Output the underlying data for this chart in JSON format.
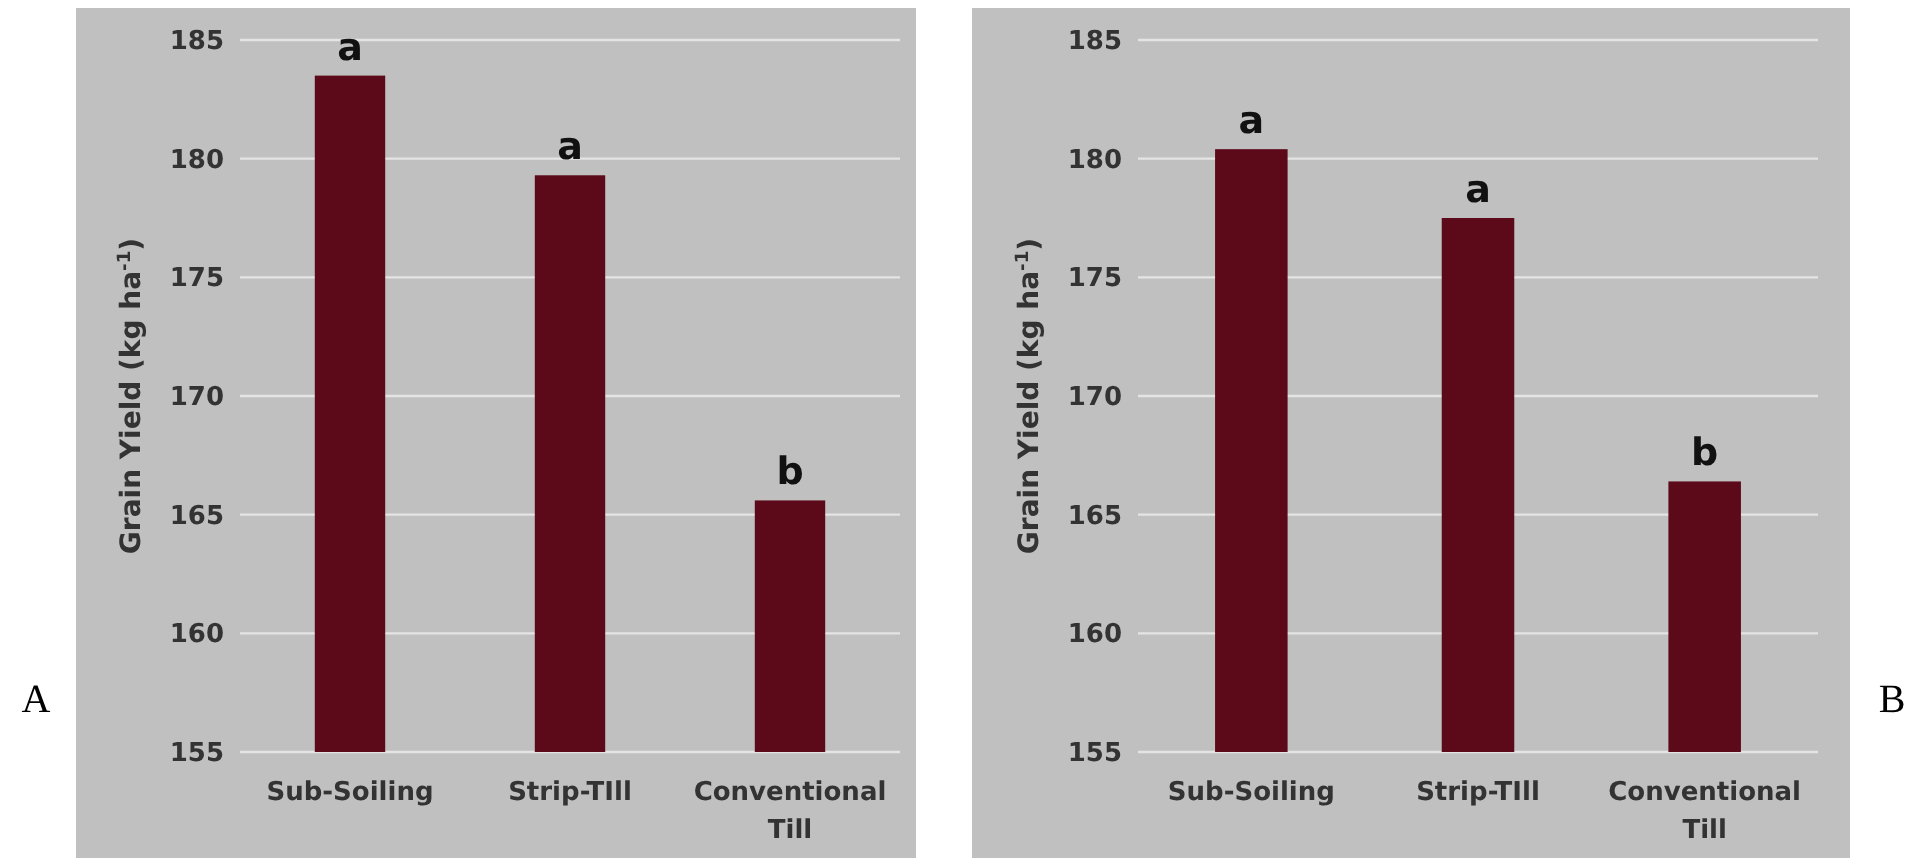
{
  "chart_data": [
    {
      "type": "bar",
      "ylabel": "Grain Yield (kg ha$^{-1}$)",
      "categories": [
        "Sub-Soiling",
        "Strip-TIll",
        "Conventional Till"
      ],
      "values": [
        183.5,
        179.3,
        165.6
      ],
      "color": "#5c0a19",
      "ylim": [
        155,
        185
      ],
      "yticks": [
        155,
        160,
        165,
        170,
        175,
        180,
        185
      ],
      "grid": "y",
      "annotations": [
        "A",
        {
          "text": "a",
          "x": "Sub-Soiling",
          "y": 183.5
        },
        {
          "text": "a",
          "x": "Strip-TIll",
          "y": 179.3
        },
        {
          "text": "b",
          "x": "Conventional Till",
          "y": 165.6
        }
      ]
    },
    {
      "type": "bar",
      "ylabel": "Grain Yield (kg ha$^{-1}$)",
      "categories": [
        "Sub-Soiling",
        "Strip-TIll",
        "Conventional Till"
      ],
      "values": [
        180.4,
        177.5,
        166.4
      ],
      "color": "#5c0a19",
      "ylim": [
        155,
        185
      ],
      "yticks": [
        155,
        160,
        165,
        170,
        175,
        180,
        185
      ],
      "grid": "y",
      "annotations": [
        "B",
        {
          "text": "a",
          "x": "Sub-Soiling",
          "y": 180.4
        },
        {
          "text": "a",
          "x": "Strip-TIll",
          "y": 177.5
        },
        {
          "text": "b",
          "x": "Conventional Till",
          "y": 166.4
        }
      ]
    }
  ]
}
